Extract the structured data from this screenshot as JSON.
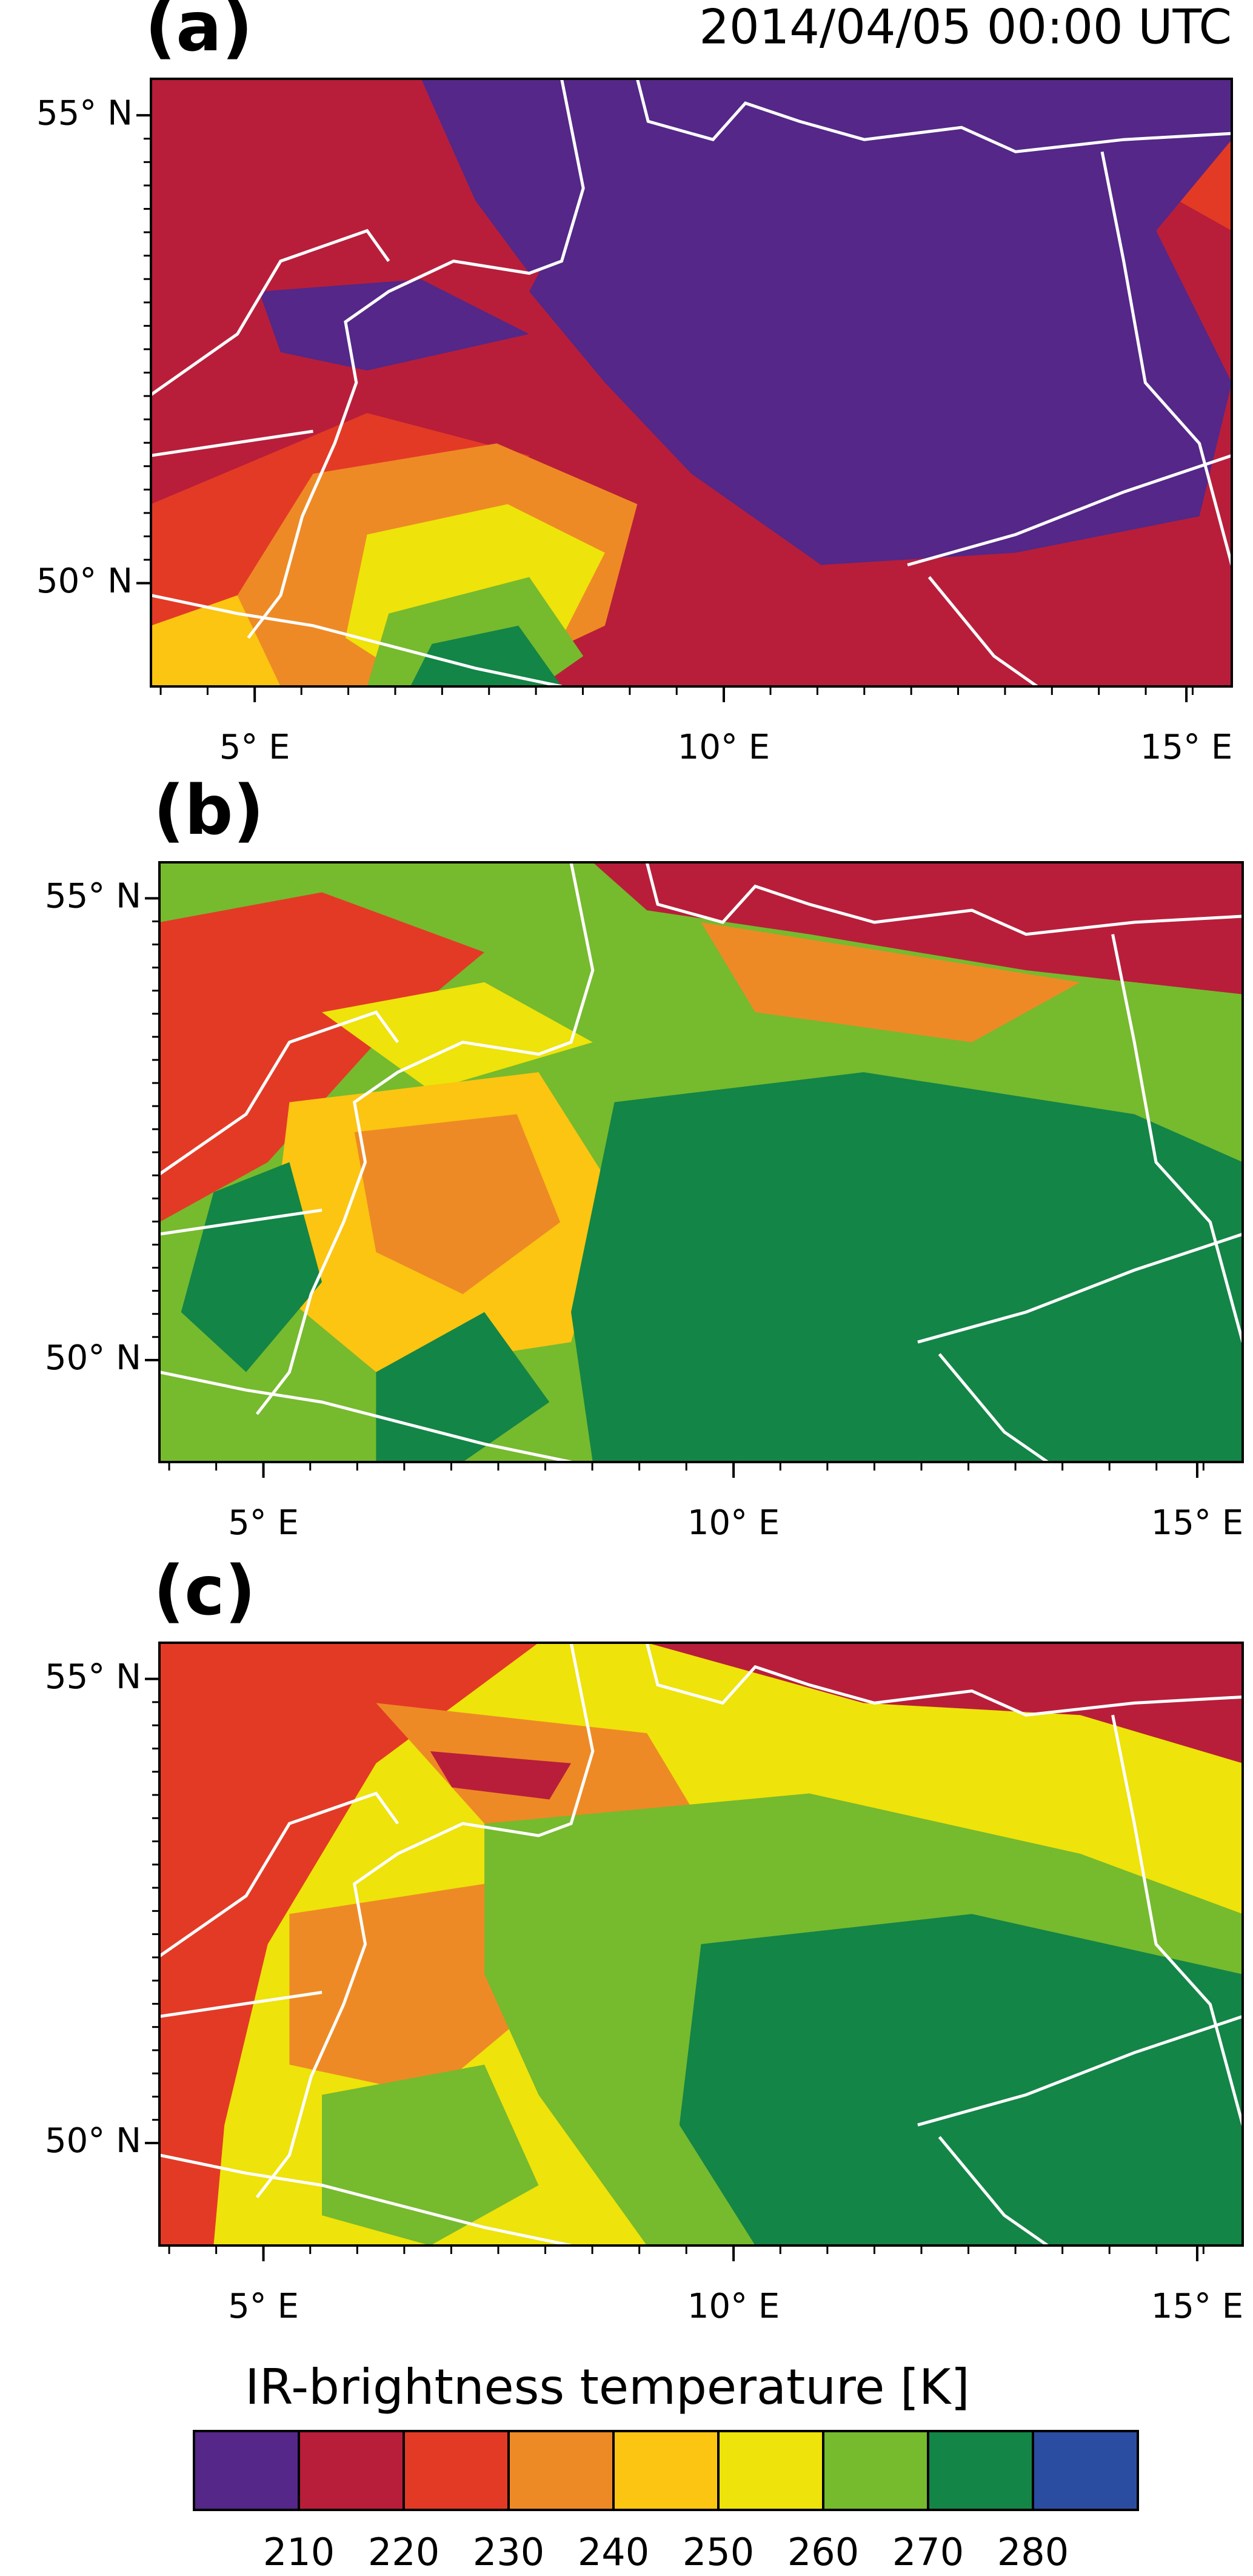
{
  "panels": [
    {
      "label": "(a)",
      "timestamp": "2014/04/05 00:00 UTC",
      "lat_labels": [
        "55° N",
        "50° N"
      ],
      "lon_labels": [
        "5° E",
        "10° E",
        "15° E"
      ]
    },
    {
      "label": "(b)",
      "lat_labels": [
        "55° N",
        "50° N"
      ],
      "lon_labels": [
        "5° E",
        "10° E",
        "15° E"
      ]
    },
    {
      "label": "(c)",
      "lat_labels": [
        "55° N",
        "50° N"
      ],
      "lon_labels": [
        "5° E",
        "10° E",
        "15° E"
      ]
    }
  ],
  "colorbar": {
    "title": "IR-brightness temperature [K]",
    "colors": [
      "#542788",
      "#b81e3a",
      "#e33a26",
      "#ee8a25",
      "#fbc512",
      "#eee30a",
      "#76ba2e",
      "#138546",
      "#2b4da1"
    ],
    "labels": [
      210,
      220,
      230,
      240,
      250,
      260,
      270,
      280
    ]
  }
}
